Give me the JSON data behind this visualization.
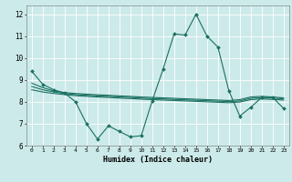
{
  "title": "",
  "xlabel": "Humidex (Indice chaleur)",
  "xlim": [
    -0.5,
    23.5
  ],
  "ylim": [
    6,
    12.4
  ],
  "yticks": [
    6,
    7,
    8,
    9,
    10,
    11,
    12
  ],
  "xticks": [
    0,
    1,
    2,
    3,
    4,
    5,
    6,
    7,
    8,
    9,
    10,
    11,
    12,
    13,
    14,
    15,
    16,
    17,
    18,
    19,
    20,
    21,
    22,
    23
  ],
  "bg_color": "#cceaea",
  "grid_color": "#ffffff",
  "line_color": "#1a7060",
  "lines": [
    {
      "x": [
        0,
        1,
        2,
        3,
        4,
        5,
        6,
        7,
        8,
        9,
        10,
        11,
        12,
        13,
        14,
        15,
        16,
        17,
        18,
        19,
        20,
        21,
        22,
        23
      ],
      "y": [
        9.4,
        8.8,
        8.55,
        8.4,
        8.0,
        7.0,
        6.3,
        6.9,
        6.65,
        6.4,
        6.45,
        8.05,
        9.5,
        11.1,
        11.05,
        12.0,
        11.0,
        10.5,
        8.5,
        7.35,
        7.75,
        8.2,
        8.2,
        7.7
      ],
      "marker": "D",
      "markersize": 2.0,
      "linewidth": 0.8,
      "has_marker": true
    },
    {
      "x": [
        0,
        1,
        2,
        3,
        4,
        5,
        6,
        7,
        8,
        9,
        10,
        11,
        12,
        13,
        14,
        15,
        16,
        17,
        18,
        19,
        20,
        21,
        22,
        23
      ],
      "y": [
        8.85,
        8.65,
        8.5,
        8.42,
        8.38,
        8.35,
        8.32,
        8.3,
        8.27,
        8.25,
        8.22,
        8.2,
        8.18,
        8.16,
        8.14,
        8.12,
        8.1,
        8.08,
        8.06,
        8.1,
        8.22,
        8.25,
        8.22,
        8.18
      ],
      "marker": null,
      "markersize": 0,
      "linewidth": 0.8,
      "has_marker": false
    },
    {
      "x": [
        0,
        1,
        2,
        3,
        4,
        5,
        6,
        7,
        8,
        9,
        10,
        11,
        12,
        13,
        14,
        15,
        16,
        17,
        18,
        19,
        20,
        21,
        22,
        23
      ],
      "y": [
        8.7,
        8.55,
        8.45,
        8.38,
        8.33,
        8.3,
        8.27,
        8.25,
        8.22,
        8.2,
        8.17,
        8.15,
        8.13,
        8.11,
        8.09,
        8.07,
        8.05,
        8.03,
        8.01,
        8.04,
        8.16,
        8.19,
        8.17,
        8.13
      ],
      "marker": null,
      "markersize": 0,
      "linewidth": 0.8,
      "has_marker": false
    },
    {
      "x": [
        0,
        1,
        2,
        3,
        4,
        5,
        6,
        7,
        8,
        9,
        10,
        11,
        12,
        13,
        14,
        15,
        16,
        17,
        18,
        19,
        20,
        21,
        22,
        23
      ],
      "y": [
        8.55,
        8.45,
        8.38,
        8.33,
        8.28,
        8.25,
        8.22,
        8.2,
        8.17,
        8.15,
        8.12,
        8.1,
        8.08,
        8.06,
        8.04,
        8.02,
        8.0,
        7.98,
        7.96,
        7.99,
        8.1,
        8.13,
        8.11,
        8.08
      ],
      "marker": null,
      "markersize": 0,
      "linewidth": 0.8,
      "has_marker": false
    }
  ]
}
